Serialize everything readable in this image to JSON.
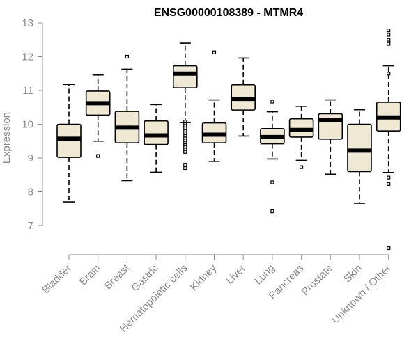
{
  "chart_data": {
    "type": "box",
    "title": "ENSG00000108389 - MTMR4",
    "xlabel": "",
    "ylabel": "Expression",
    "ylim": [
      6.2,
      13.1
    ],
    "yticks": [
      7,
      8,
      9,
      10,
      11,
      12,
      13
    ],
    "grid": false,
    "colors": {
      "box_fill": "#efe8d2",
      "stroke": "#000000",
      "axis_text": "#8a8a8a"
    },
    "categories": [
      "Bladder",
      "Brain",
      "Breast",
      "Gastric",
      "Hematopoietic cells",
      "Kidney",
      "Liver",
      "Lung",
      "Pancreas",
      "Prostate",
      "Skin",
      "Unknown / Other"
    ],
    "boxes": [
      {
        "label": "Bladder",
        "min": 7.7,
        "q1": 9.02,
        "median": 9.57,
        "q3": 10.0,
        "max": 11.18,
        "outliers": []
      },
      {
        "label": "Brain",
        "min": 9.5,
        "q1": 10.27,
        "median": 10.62,
        "q3": 10.98,
        "max": 11.46,
        "outliers": [
          9.06
        ]
      },
      {
        "label": "Breast",
        "min": 8.33,
        "q1": 9.45,
        "median": 9.9,
        "q3": 10.38,
        "max": 11.63,
        "outliers": [
          12.0
        ]
      },
      {
        "label": "Gastric",
        "min": 8.58,
        "q1": 9.4,
        "median": 9.67,
        "q3": 10.1,
        "max": 10.58,
        "outliers": []
      },
      {
        "label": "Hematopoietic cells",
        "min": 10.05,
        "q1": 11.08,
        "median": 11.5,
        "q3": 11.73,
        "max": 12.4,
        "outliers": [
          10.08,
          10.0,
          9.95,
          9.88,
          9.8,
          9.73,
          9.65,
          9.58,
          9.52,
          9.45,
          9.38,
          9.32,
          9.25,
          9.18,
          8.8,
          8.7
        ]
      },
      {
        "label": "Kidney",
        "min": 8.9,
        "q1": 9.45,
        "median": 9.69,
        "q3": 10.04,
        "max": 10.72,
        "outliers": [
          12.13
        ]
      },
      {
        "label": "Liver",
        "min": 9.65,
        "q1": 10.42,
        "median": 10.75,
        "q3": 11.17,
        "max": 11.96,
        "outliers": []
      },
      {
        "label": "Lung",
        "min": 8.97,
        "q1": 9.42,
        "median": 9.62,
        "q3": 9.87,
        "max": 10.37,
        "outliers": [
          10.67,
          8.28,
          7.42
        ]
      },
      {
        "label": "Pancreas",
        "min": 8.93,
        "q1": 9.62,
        "median": 9.83,
        "q3": 10.16,
        "max": 10.53,
        "outliers": [
          8.73
        ]
      },
      {
        "label": "Prostate",
        "min": 8.52,
        "q1": 9.56,
        "median": 10.12,
        "q3": 10.31,
        "max": 10.72,
        "outliers": []
      },
      {
        "label": "Skin",
        "min": 7.66,
        "q1": 8.6,
        "median": 9.22,
        "q3": 10.0,
        "max": 10.43,
        "outliers": []
      },
      {
        "label": "Unknown / Other",
        "min": 8.57,
        "q1": 9.8,
        "median": 10.2,
        "q3": 10.65,
        "max": 11.73,
        "outliers": [
          12.78,
          12.65,
          12.5,
          12.42,
          12.38,
          11.5,
          8.42,
          8.23,
          6.33
        ]
      }
    ]
  }
}
